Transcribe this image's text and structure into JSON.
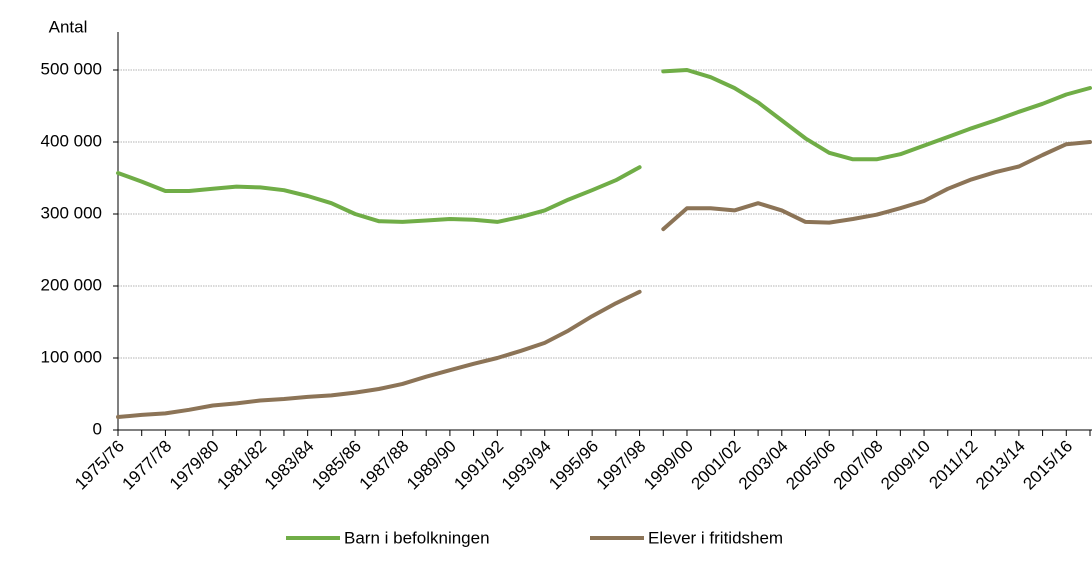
{
  "chart_data": {
    "type": "line",
    "y_label": "Antal",
    "categories": [
      "1975/76",
      null,
      "1977/78",
      null,
      "1979/80",
      null,
      "1981/82",
      null,
      "1983/84",
      null,
      "1985/86",
      null,
      "1987/88",
      null,
      "1989/90",
      null,
      "1991/92",
      null,
      "1993/94",
      null,
      "1995/96",
      null,
      "1997/98",
      null,
      "1999/00",
      null,
      "2001/02",
      null,
      "2003/04",
      null,
      "2005/06",
      null,
      "2007/08",
      null,
      "2009/10",
      null,
      "2011/12",
      null,
      "2013/14",
      null,
      "2015/16",
      null
    ],
    "series": [
      {
        "name": "Barn i befolkningen",
        "color": "#70ad47",
        "values": [
          357000,
          345000,
          332000,
          332000,
          335000,
          338000,
          337000,
          333000,
          325000,
          315000,
          300000,
          290000,
          289000,
          291000,
          293000,
          292000,
          289000,
          296000,
          305000,
          320000,
          333000,
          347000,
          365000,
          null,
          null,
          null,
          null,
          null,
          null,
          null,
          null,
          null,
          null,
          null,
          null,
          null,
          null,
          null,
          null,
          null,
          null,
          null
        ]
      },
      {
        "name": "Elever i fritidshem",
        "color": "#8c7457",
        "values": [
          18000,
          21000,
          23000,
          28000,
          34000,
          37000,
          41000,
          43000,
          46000,
          48000,
          52000,
          57000,
          64000,
          74000,
          83000,
          92000,
          100000,
          110000,
          121000,
          138000,
          158000,
          176000,
          192000,
          null,
          null,
          null,
          null,
          null,
          null,
          null,
          null,
          null,
          null,
          null,
          null,
          null,
          null,
          null,
          null,
          null,
          null,
          null
        ]
      },
      {
        "color": "#70ad47",
        "values": [
          null,
          null,
          null,
          null,
          null,
          null,
          null,
          null,
          null,
          null,
          null,
          null,
          null,
          null,
          null,
          null,
          null,
          null,
          null,
          null,
          null,
          null,
          null,
          498000,
          500000,
          490000,
          475000,
          455000,
          430000,
          405000,
          385000,
          376000,
          376000,
          383000,
          395000,
          407000,
          419000,
          430000,
          442000,
          453000,
          466000,
          475000
        ]
      },
      {
        "color": "#8c7457",
        "values": [
          null,
          null,
          null,
          null,
          null,
          null,
          null,
          null,
          null,
          null,
          null,
          null,
          null,
          null,
          null,
          null,
          null,
          null,
          null,
          null,
          null,
          null,
          null,
          279000,
          308000,
          308000,
          305000,
          315000,
          305000,
          289000,
          288000,
          293000,
          299000,
          308000,
          318000,
          335000,
          348000,
          358000,
          366000,
          382000,
          397000,
          400000
        ]
      }
    ],
    "ylim": [
      0,
      500000
    ],
    "yticks": [
      0,
      {
        "value": 100000,
        "label": "100 000"
      },
      {
        "value": 200000,
        "label": "200 000"
      },
      {
        "value": 300000,
        "label": "300 000"
      },
      {
        "value": 400000,
        "label": "400 000"
      },
      {
        "value": 500000,
        "label": "500 000"
      }
    ],
    "grid": true
  }
}
